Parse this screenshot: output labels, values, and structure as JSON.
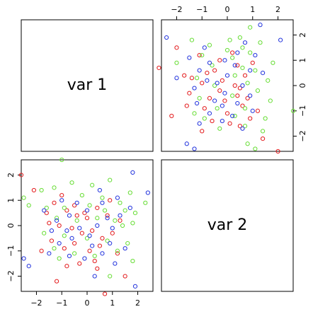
{
  "chart_data": {
    "type": "scatter",
    "plot_kind": "scatterplot-matrix",
    "variables": [
      "var 1",
      "var 2"
    ],
    "axis_ticks": [
      -2,
      -1,
      0,
      1,
      2
    ],
    "axis_ranges": {
      "var 1": [
        -2.6,
        2.6
      ],
      "var 2": [
        -2.6,
        2.6
      ]
    },
    "grid": false,
    "colors": {
      "red": "#e31a1c",
      "green": "#66dd33",
      "blue": "#2233dd"
    },
    "series": [
      {
        "color": "red",
        "points": [
          {
            "var1": -2.6,
            "var2": 2.0
          },
          {
            "var1": -2.1,
            "var2": 1.4
          },
          {
            "var1": -1.3,
            "var2": 0.9
          },
          {
            "var1": -1.0,
            "var2": 1.2
          },
          {
            "var1": -0.8,
            "var2": 0.6
          },
          {
            "var1": -0.5,
            "var2": 0.8
          },
          {
            "var1": -0.1,
            "var2": 0.5
          },
          {
            "var1": 0.4,
            "var2": 0.7
          },
          {
            "var1": 0.8,
            "var2": 0.4
          },
          {
            "var1": 1.3,
            "var2": 0.2
          },
          {
            "var1": -1.5,
            "var2": 0.1
          },
          {
            "var1": -1.1,
            "var2": 0.0
          },
          {
            "var1": -0.6,
            "var2": -0.1
          },
          {
            "var1": -0.2,
            "var2": -0.3
          },
          {
            "var1": 0.2,
            "var2": -0.2
          },
          {
            "var1": 0.6,
            "var2": -0.5
          },
          {
            "var1": 1.0,
            "var2": -0.3
          },
          {
            "var1": -1.4,
            "var2": -0.6
          },
          {
            "var1": -0.9,
            "var2": -0.9
          },
          {
            "var1": -0.5,
            "var2": -0.7
          },
          {
            "var1": 0.1,
            "var2": -1.0
          },
          {
            "var1": 0.5,
            "var2": -0.8
          },
          {
            "var1": 1.2,
            "var2": -1.1
          },
          {
            "var1": -1.8,
            "var2": -1.0
          },
          {
            "var1": -0.8,
            "var2": -1.6
          },
          {
            "var1": -0.3,
            "var2": -1.5
          },
          {
            "var1": 0.4,
            "var2": -1.7
          },
          {
            "var1": 1.5,
            "var2": -2.0
          },
          {
            "var1": 0.7,
            "var2": -2.7
          },
          {
            "var1": -1.2,
            "var2": -2.2
          },
          {
            "var1": 0.0,
            "var2": 0.3
          },
          {
            "var1": -0.4,
            "var2": 0.4
          },
          {
            "var1": 0.9,
            "var2": 1.0
          },
          {
            "var1": -1.6,
            "var2": 0.5
          },
          {
            "var1": 0.3,
            "var2": -1.4
          }
        ]
      },
      {
        "color": "green",
        "points": [
          {
            "var1": -1.0,
            "var2": 2.6
          },
          {
            "var1": -0.6,
            "var2": 1.7
          },
          {
            "var1": 0.2,
            "var2": 1.6
          },
          {
            "var1": 0.9,
            "var2": 1.8
          },
          {
            "var1": 1.7,
            "var2": 1.3
          },
          {
            "var1": 2.3,
            "var2": 0.9
          },
          {
            "var1": -2.5,
            "var2": 1.1
          },
          {
            "var1": -1.8,
            "var2": 1.4
          },
          {
            "var1": -1.3,
            "var2": 1.5
          },
          {
            "var1": -0.2,
            "var2": 1.2
          },
          {
            "var1": 0.6,
            "var2": 1.1
          },
          {
            "var1": 1.3,
            "var2": 0.9
          },
          {
            "var1": 1.9,
            "var2": 0.5
          },
          {
            "var1": -2.3,
            "var2": 0.8
          },
          {
            "var1": -1.6,
            "var2": 0.7
          },
          {
            "var1": -0.9,
            "var2": 0.7
          },
          {
            "var1": 0.1,
            "var2": 0.8
          },
          {
            "var1": 0.7,
            "var2": 0.6
          },
          {
            "var1": 1.5,
            "var2": 0.6
          },
          {
            "var1": -1.2,
            "var2": 0.3
          },
          {
            "var1": -0.4,
            "var2": 0.2
          },
          {
            "var1": 0.4,
            "var2": 0.3
          },
          {
            "var1": 1.1,
            "var2": 0.2
          },
          {
            "var1": 1.8,
            "var2": 0.1
          },
          {
            "var1": -1.7,
            "var2": -0.3
          },
          {
            "var1": -0.9,
            "var2": -0.4
          },
          {
            "var1": 0.0,
            "var2": -0.5
          },
          {
            "var1": 0.8,
            "var2": -0.6
          },
          {
            "var1": 1.6,
            "var2": -0.7
          },
          {
            "var1": -1.3,
            "var2": -0.9
          },
          {
            "var1": -0.5,
            "var2": -1.1
          },
          {
            "var1": 0.3,
            "var2": -1.2
          },
          {
            "var1": 1.2,
            "var2": -1.0
          },
          {
            "var1": 1.8,
            "var2": -1.4
          },
          {
            "var1": 0.9,
            "var2": -2.0
          },
          {
            "var1": -1.1,
            "var2": -1.3
          },
          {
            "var1": 1.4,
            "var2": 0.0
          }
        ]
      },
      {
        "color": "blue",
        "points": [
          {
            "var1": 1.8,
            "var2": 2.1
          },
          {
            "var1": 2.4,
            "var2": 1.3
          },
          {
            "var1": -1.0,
            "var2": 1.0
          },
          {
            "var1": 0.5,
            "var2": 1.4
          },
          {
            "var1": 1.2,
            "var2": 1.1
          },
          {
            "var1": -1.7,
            "var2": 0.6
          },
          {
            "var1": -0.7,
            "var2": 0.4
          },
          {
            "var1": 0.0,
            "var2": 0.6
          },
          {
            "var1": 0.6,
            "var2": 0.9
          },
          {
            "var1": 1.7,
            "var2": 0.7
          },
          {
            "var1": -1.4,
            "var2": -0.2
          },
          {
            "var1": -0.8,
            "var2": -0.2
          },
          {
            "var1": -0.3,
            "var2": -0.1
          },
          {
            "var1": 0.4,
            "var2": 0.0
          },
          {
            "var1": 1.0,
            "var2": -0.1
          },
          {
            "var1": -1.1,
            "var2": -0.7
          },
          {
            "var1": -0.6,
            "var2": -0.5
          },
          {
            "var1": 0.2,
            "var2": -0.8
          },
          {
            "var1": 0.9,
            "var2": -0.7
          },
          {
            "var1": 1.5,
            "var2": -0.9
          },
          {
            "var1": -1.5,
            "var2": -1.1
          },
          {
            "var1": -0.7,
            "var2": -1.2
          },
          {
            "var1": -0.1,
            "var2": -1.3
          },
          {
            "var1": 0.6,
            "var2": -1.1
          },
          {
            "var1": 1.1,
            "var2": -1.5
          },
          {
            "var1": -2.5,
            "var2": -1.3
          },
          {
            "var1": -2.3,
            "var2": -1.6
          },
          {
            "var1": 0.3,
            "var2": -2.0
          },
          {
            "var1": 1.9,
            "var2": -2.4
          },
          {
            "var1": -0.4,
            "var2": 0.9
          },
          {
            "var1": 0.8,
            "var2": 0.3
          },
          {
            "var1": -1.2,
            "var2": 0.2
          },
          {
            "var1": 0.1,
            "var2": -0.4
          },
          {
            "var1": 1.3,
            "var2": 0.4
          }
        ]
      }
    ]
  }
}
